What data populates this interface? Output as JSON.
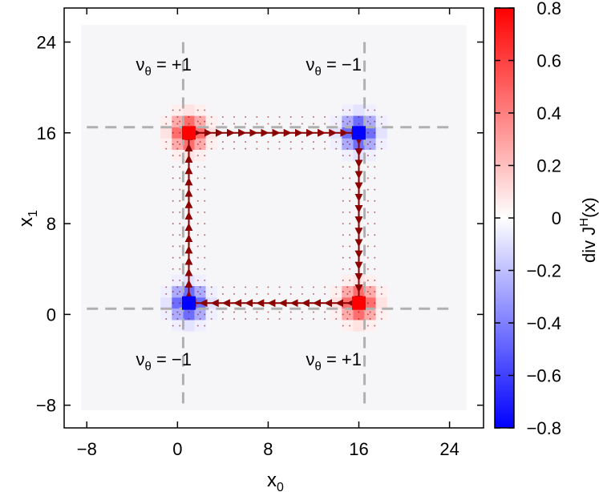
{
  "chart_data": {
    "type": "heatmap",
    "xlabel": "x",
    "xlabel_sub": "0",
    "ylabel": "x",
    "ylabel_sub": "1",
    "xlim": [
      -10,
      27
    ],
    "ylim": [
      -10,
      27
    ],
    "xticks": [
      -8,
      0,
      8,
      16,
      24
    ],
    "yticks": [
      -8,
      0,
      8,
      16,
      24
    ],
    "x_tick_labels": [
      "−8",
      "0",
      "8",
      "16",
      "24"
    ],
    "y_tick_labels": [
      "−8",
      "0",
      "8",
      "16",
      "24"
    ],
    "colorbar": {
      "label_prefix": "div J",
      "label_sup": "H",
      "label_suffix": "(x)",
      "range": [
        -0.8,
        0.8
      ],
      "ticks": [
        0.8,
        0.6,
        0.4,
        0.2,
        0,
        -0.2,
        -0.4,
        -0.6,
        -0.8
      ],
      "tick_labels": [
        "0.8",
        "0.6",
        "0.4",
        "0.2",
        "0",
        "−0.2",
        "−0.4",
        "−0.6",
        "−0.8"
      ],
      "color_min": "#0000ff",
      "color_mid": "#ffffff",
      "color_max": "#ff0000"
    },
    "grid": false,
    "dashed_lines": {
      "x": [
        0.5,
        16.5
      ],
      "y": [
        0.5,
        16.5
      ],
      "color": "#b0b0b0"
    },
    "vortices": [
      {
        "x": 1,
        "y": 16,
        "value": 0.8,
        "label": "ν",
        "label_sub": "θ",
        "label_value": " = +1"
      },
      {
        "x": 16,
        "y": 16,
        "value": -0.8,
        "label": "ν",
        "label_sub": "θ",
        "label_value": " = −1"
      },
      {
        "x": 1,
        "y": 1,
        "value": -0.8,
        "label": "ν",
        "label_sub": "θ",
        "label_value": " = −1"
      },
      {
        "x": 16,
        "y": 1,
        "value": 0.8,
        "label": "ν",
        "label_sub": "θ",
        "label_value": " = +1"
      }
    ],
    "current_loop": {
      "color": "#8b0000",
      "path": [
        [
          1,
          16
        ],
        [
          16,
          16
        ],
        [
          16,
          1
        ],
        [
          1,
          1
        ],
        [
          1,
          16
        ]
      ],
      "direction": "clockwise"
    }
  }
}
